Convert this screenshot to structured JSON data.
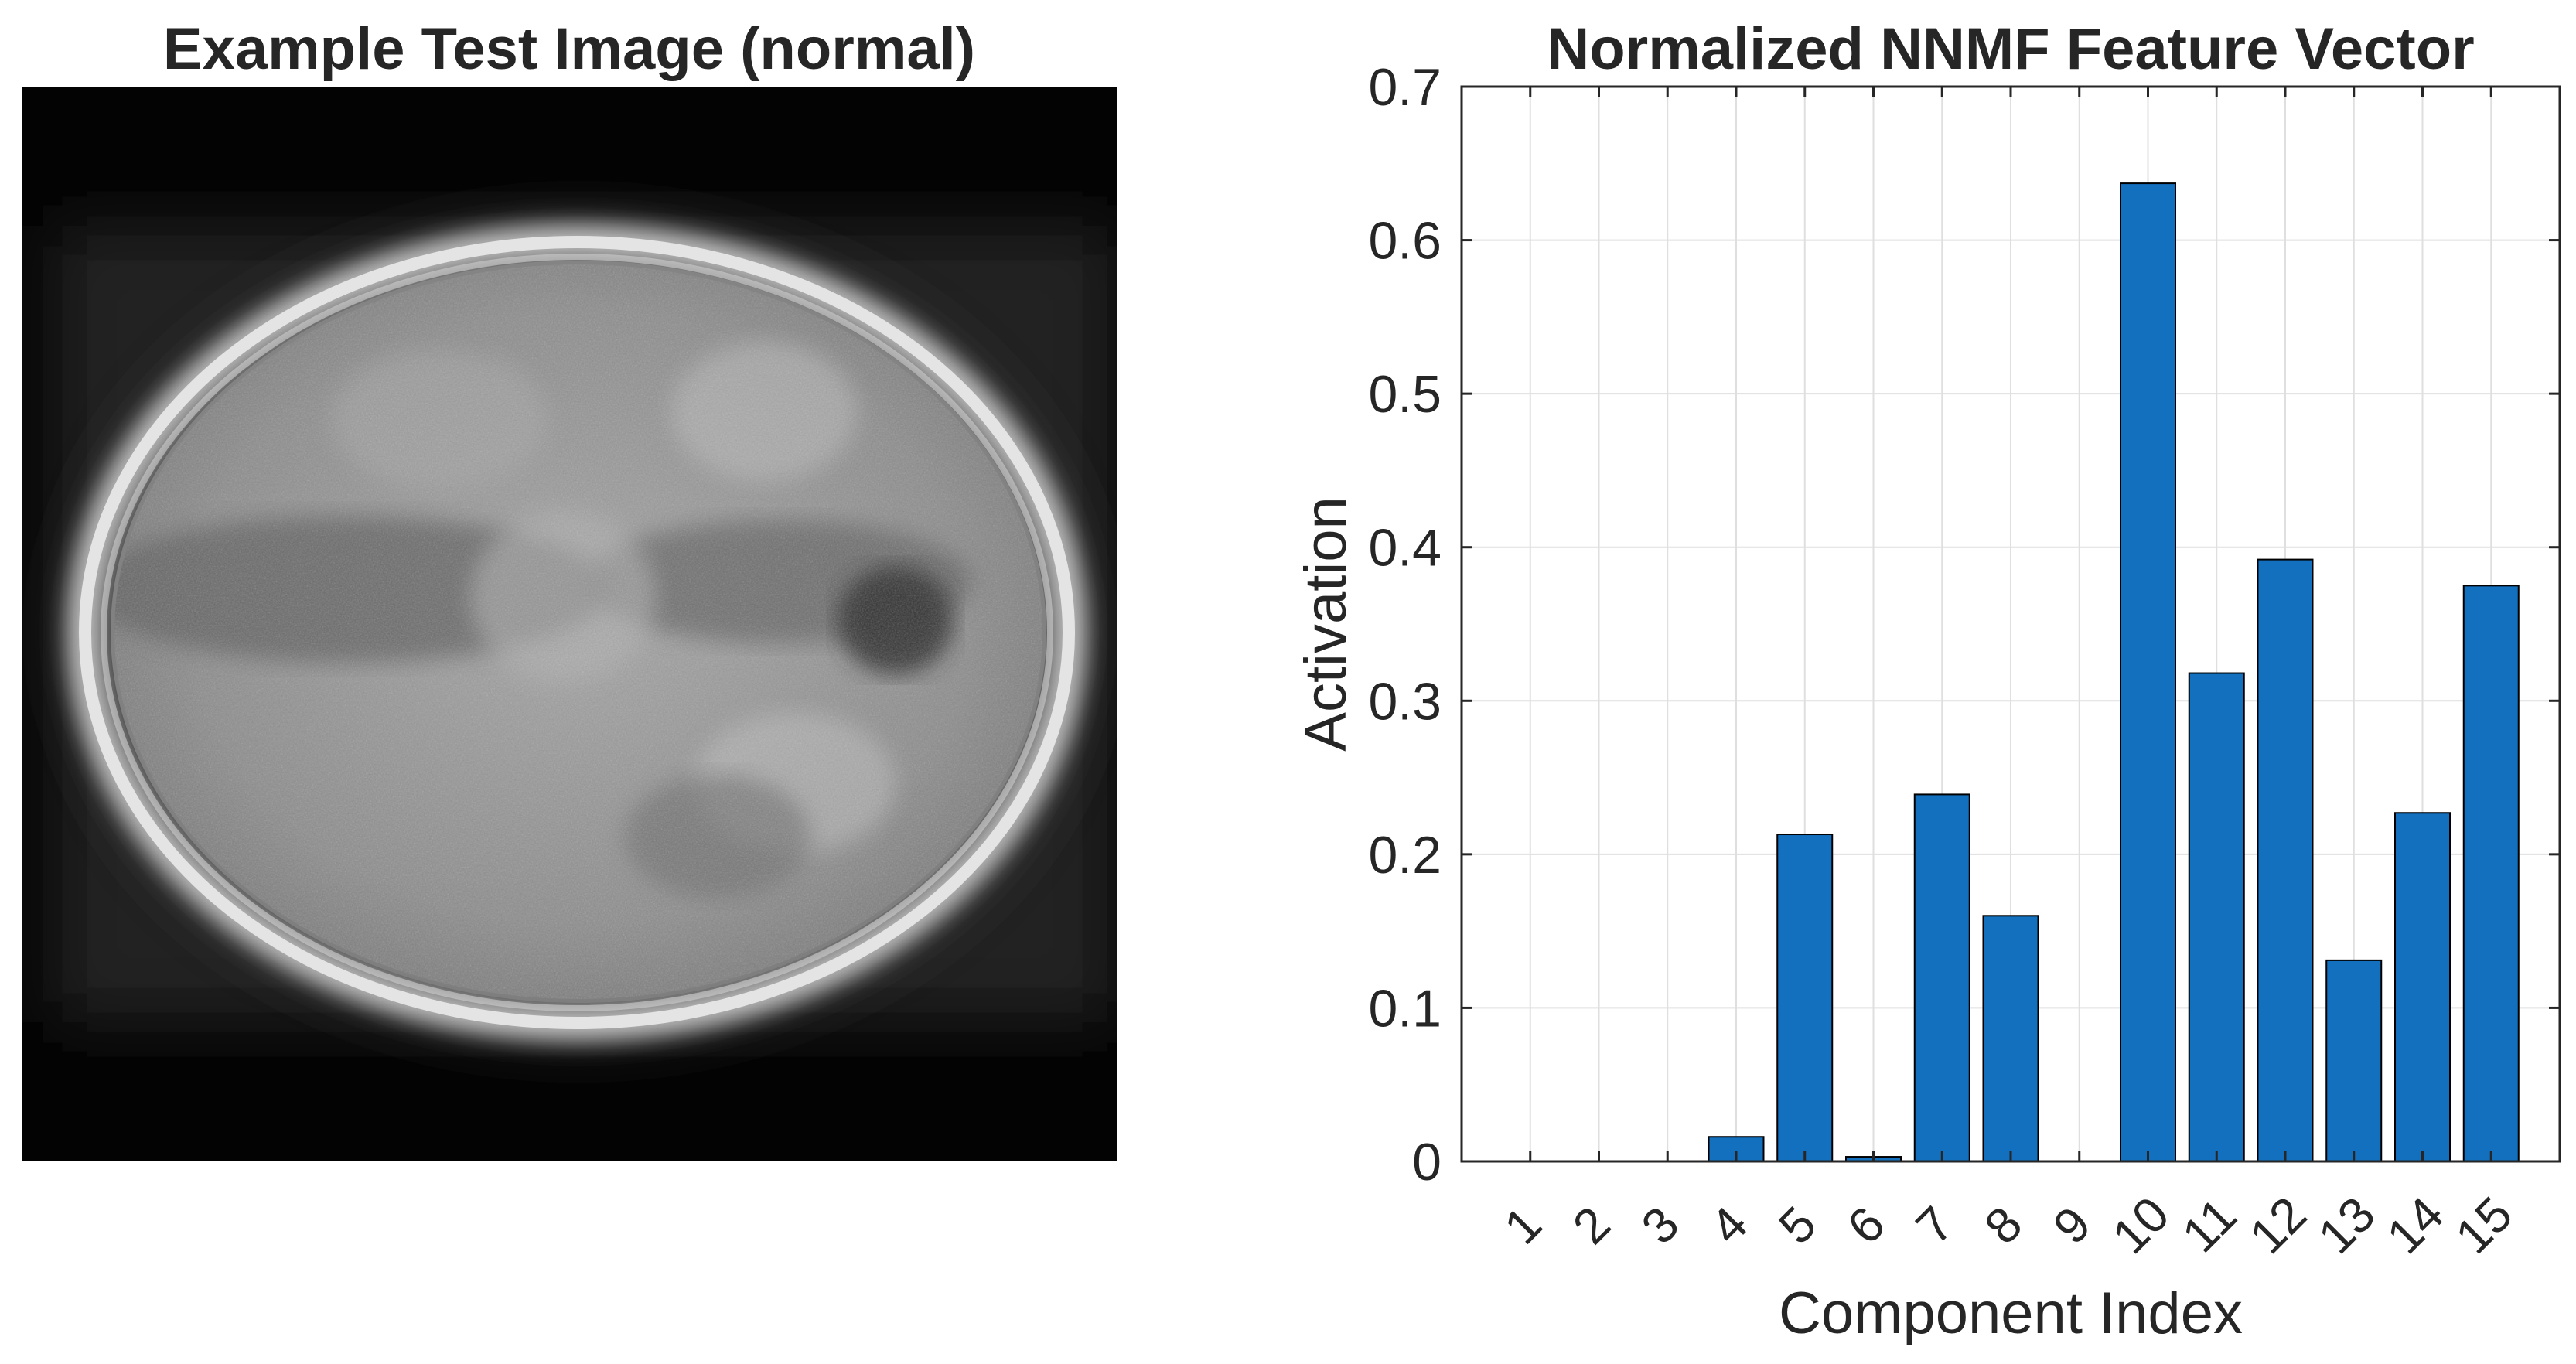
{
  "left_panel": {
    "title": "Example Test Image (normal)"
  },
  "chart_data": {
    "type": "bar",
    "title": "Normalized NNMF Feature Vector",
    "xlabel": "Component Index",
    "ylabel": "Activation",
    "categories": [
      "1",
      "2",
      "3",
      "4",
      "5",
      "6",
      "7",
      "8",
      "9",
      "10",
      "11",
      "12",
      "13",
      "14",
      "15"
    ],
    "values": [
      0,
      0,
      0,
      0.016,
      0.213,
      0.003,
      0.239,
      0.16,
      0,
      0.637,
      0.318,
      0.392,
      0.131,
      0.227,
      0.375
    ],
    "ylim": [
      0,
      0.7
    ],
    "yticks": [
      0,
      0.1,
      0.2,
      0.3,
      0.4,
      0.5,
      0.6,
      0.7
    ],
    "ytick_labels": [
      "0",
      "0.1",
      "0.2",
      "0.3",
      "0.4",
      "0.5",
      "0.6",
      "0.7"
    ],
    "grid": true,
    "bar_color": "#1370bf"
  }
}
